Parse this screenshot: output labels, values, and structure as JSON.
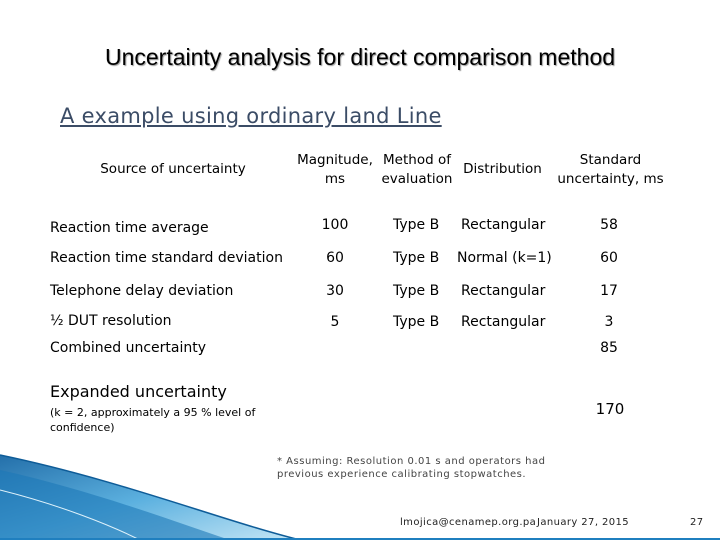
{
  "slide": {
    "title": "Uncertainty analysis for direct comparison method",
    "subtitle": "A example using ordinary land Line"
  },
  "table": {
    "headers": {
      "source": "Source of uncertainty",
      "magnitude": "Magnitude, ms",
      "method": "Method of evaluation",
      "distribution": "Distribution",
      "standard": "Standard uncertainty, ms"
    },
    "rows": [
      {
        "source": "Reaction  time average",
        "magnitude": "100",
        "method": "Type B",
        "distribution": "Rectangular",
        "standard": "58"
      },
      {
        "source": "Reaction  time standard deviation",
        "magnitude": "60",
        "method": "Type B",
        "distribution": "Normal (k=1)",
        "standard": "60"
      },
      {
        "source": "Telephone delay deviation",
        "magnitude": "30",
        "method": "Type B",
        "distribution": "Rectangular",
        "standard": "17"
      },
      {
        "source": "½ DUT resolution",
        "magnitude": "5",
        "method": "Type B",
        "distribution": "Rectangular",
        "standard": "3"
      }
    ],
    "combined": {
      "label": "Combined uncertainty",
      "value": "85"
    },
    "expanded": {
      "label": "Expanded uncertainty",
      "note": "(k = 2, approximately a 95 %  level of confidence)",
      "value": "170"
    }
  },
  "footnote": "* Assuming: Resolution 0.01 s  and operators had previous experience calibrating  stopwatches.",
  "footer": {
    "email": "lmojica@cenamep.org.pa",
    "date": "January 27, 2015",
    "page": "27"
  },
  "colors": {
    "accent": "#1f7fbf",
    "subtitle": "#3b4c66"
  }
}
